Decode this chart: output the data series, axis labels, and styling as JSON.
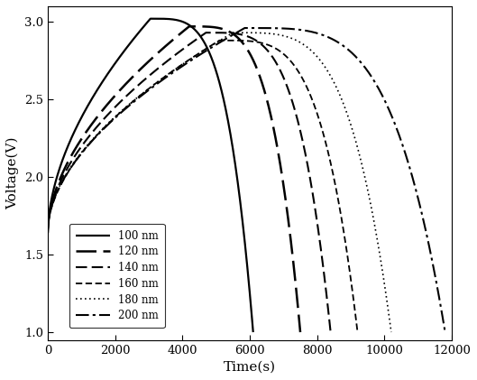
{
  "title": "",
  "xlabel": "Time(s)",
  "ylabel": "Voltage(V)",
  "xlim": [
    0,
    12000
  ],
  "ylim": [
    0.95,
    3.1
  ],
  "xticks": [
    0,
    2000,
    4000,
    6000,
    8000,
    10000,
    12000
  ],
  "yticks": [
    1.0,
    1.5,
    2.0,
    2.5,
    3.0
  ],
  "background_color": "#ffffff",
  "series": [
    {
      "label": "100 nm",
      "charge_end_t": 3050,
      "peak_v": 3.02,
      "discharge_end_t": 6100,
      "start_v": 1.63,
      "lw": 1.6,
      "ls_key": "solid"
    },
    {
      "label": "120 nm",
      "charge_end_t": 4200,
      "peak_v": 2.97,
      "discharge_end_t": 7500,
      "start_v": 1.64,
      "lw": 1.8,
      "ls_key": "long_dash"
    },
    {
      "label": "140 nm",
      "charge_end_t": 4700,
      "peak_v": 2.93,
      "discharge_end_t": 8400,
      "start_v": 1.65,
      "lw": 1.5,
      "ls_key": "medium_dash"
    },
    {
      "label": "160 nm",
      "charge_end_t": 5100,
      "peak_v": 2.88,
      "discharge_end_t": 9200,
      "start_v": 1.65,
      "lw": 1.3,
      "ls_key": "short_dash"
    },
    {
      "label": "180 nm",
      "charge_end_t": 5500,
      "peak_v": 2.93,
      "discharge_end_t": 10200,
      "start_v": 1.66,
      "lw": 1.2,
      "ls_key": "dotted"
    },
    {
      "label": "200 nm",
      "charge_end_t": 5850,
      "peak_v": 2.96,
      "discharge_end_t": 11800,
      "start_v": 1.66,
      "lw": 1.5,
      "ls_key": "dashdot"
    }
  ],
  "font_family": "DejaVu Serif"
}
